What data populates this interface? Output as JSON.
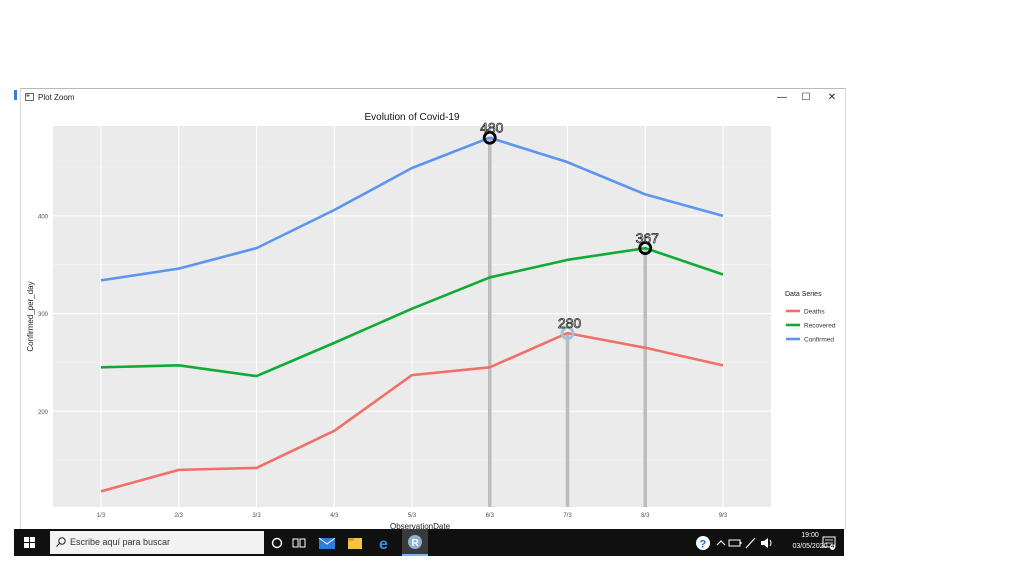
{
  "window": {
    "title": "Plot Zoom",
    "minimize_glyph": "—",
    "maximize_glyph": "☐",
    "close_glyph": "✕"
  },
  "taskbar": {
    "search_placeholder": "Escribe aquí para buscar",
    "time": "19:00",
    "date": "03/05/2020",
    "notification_count": "4",
    "icons": [
      "windows-start-icon",
      "search-icon",
      "cortana-icon",
      "task-view-icon",
      "mail-icon",
      "file-explorer-icon",
      "edge-icon",
      "r-icon",
      "help-icon",
      "chevron-up-icon",
      "battery-icon",
      "pen-icon",
      "speaker-icon",
      "notification-icon"
    ]
  },
  "chart_data": {
    "type": "line",
    "title": "Evolution of Covid-19",
    "xlabel": "ObservationDate",
    "ylabel": "Confirmed_per_day",
    "categories": [
      "1/3",
      "2/3",
      "3/3",
      "4/3",
      "5/3",
      "6/3",
      "7/3",
      "8/3",
      "9/3"
    ],
    "ylim": [
      102,
      492
    ],
    "yticks": [
      200,
      300,
      400
    ],
    "grid": true,
    "legend_title": "Data Series",
    "legend_position": "right",
    "series": [
      {
        "name": "Deaths",
        "color": "#f07068",
        "values": [
          118,
          140,
          142,
          180,
          237,
          245,
          280,
          265,
          247
        ]
      },
      {
        "name": "Recovered",
        "color": "#0fac34",
        "values": [
          245,
          247,
          236,
          270,
          305,
          337,
          355,
          367,
          340
        ]
      },
      {
        "name": "Confirmed",
        "color": "#5b95ee",
        "values": [
          334,
          346,
          367,
          406,
          449,
          480,
          455,
          422,
          400
        ]
      }
    ],
    "annotations": [
      {
        "category": "6/3",
        "value": 480,
        "label": "480",
        "marker_color": "#000000"
      },
      {
        "category": "7/3",
        "value": 280,
        "label": "280",
        "marker_color": "#9fc0d8"
      },
      {
        "category": "8/3",
        "value": 367,
        "label": "367",
        "marker_color": "#000000"
      }
    ]
  }
}
